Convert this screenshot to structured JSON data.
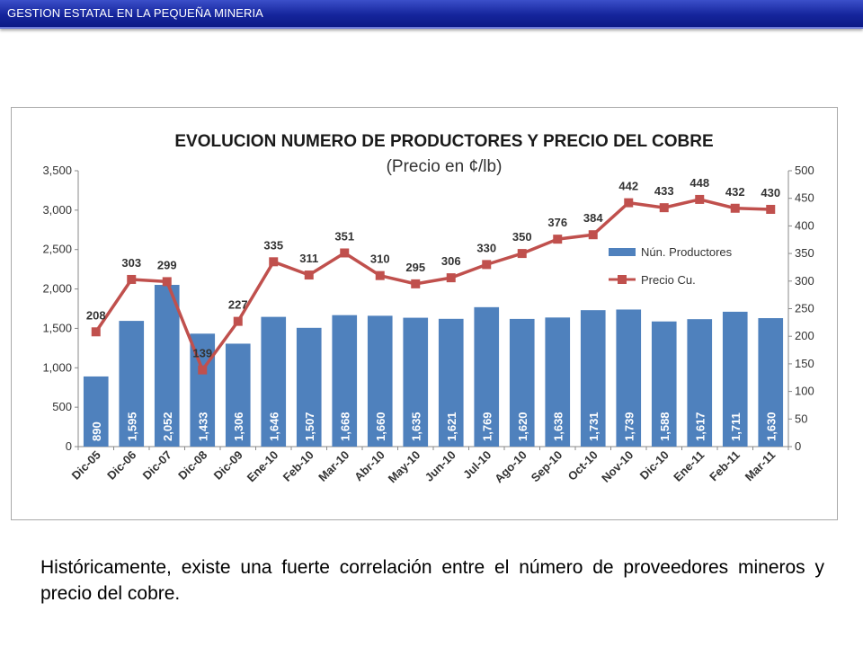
{
  "header": {
    "title": "GESTION  ESTATAL  EN  LA  PEQUEÑA MINERIA"
  },
  "caption": "Históricamente, existe una fuerte correlación entre el número de proveedores mineros y precio del cobre.",
  "colors": {
    "banner": "#15259c",
    "bars": "#4f81bd",
    "line": "#c0504d",
    "bar_label": "#ffffff"
  },
  "chart_data": {
    "type": "bar",
    "title": "EVOLUCION NUMERO DE PRODUCTORES Y PRECIO DEL COBRE",
    "subtitle": "(Precio en ¢/lb)",
    "categories": [
      "Dic-05",
      "Dic-06",
      "Dic-07",
      "Dic-08",
      "Dic-09",
      "Ene-10",
      "Feb-10",
      "Mar-10",
      "Abr-10",
      "May-10",
      "Jun-10",
      "Jul-10",
      "Ago-10",
      "Sep-10",
      "Oct-10",
      "Nov-10",
      "Dic-10",
      "Ene-11",
      "Feb-11",
      "Mar-11"
    ],
    "series": [
      {
        "name": "Nún. Productores",
        "type": "bar",
        "axis": "left",
        "values": [
          890,
          1595,
          2052,
          1433,
          1306,
          1646,
          1507,
          1668,
          1660,
          1635,
          1621,
          1769,
          1620,
          1638,
          1731,
          1739,
          1588,
          1617,
          1711,
          1630
        ],
        "labels": [
          "890",
          "1,595",
          "2,052",
          "1,433",
          "1,306",
          "1,646",
          "1,507",
          "1,668",
          "1,660",
          "1,635",
          "1,621",
          "1,769",
          "1,620",
          "1,638",
          "1,731",
          "1,739",
          "1,588",
          "1,617",
          "1,711",
          "1,630"
        ]
      },
      {
        "name": "Precio Cu.",
        "type": "line",
        "axis": "right",
        "values": [
          208,
          303,
          299,
          139,
          227,
          335,
          311,
          351,
          310,
          295,
          306,
          330,
          350,
          376,
          384,
          442,
          433,
          448,
          432,
          430
        ],
        "labels": [
          "208",
          "303",
          "299",
          "139",
          "227",
          "335",
          "311",
          "351",
          "310",
          "295",
          "306",
          "330",
          "350",
          "376",
          "384",
          "442",
          "433",
          "448",
          "432",
          "430"
        ]
      }
    ],
    "y_left": {
      "lim": [
        0,
        3500
      ],
      "ticks": [
        "0",
        "500",
        "1,000",
        "1,500",
        "2,000",
        "2,500",
        "3,000",
        "3,500"
      ]
    },
    "y_right": {
      "lim": [
        0,
        500
      ],
      "ticks": [
        "0",
        "50",
        "100",
        "150",
        "200",
        "250",
        "300",
        "350",
        "400",
        "450",
        "500"
      ]
    },
    "legend": {
      "placement": "right",
      "entries": [
        "Nún. Productores",
        "Precio Cu."
      ]
    },
    "grid": false
  }
}
